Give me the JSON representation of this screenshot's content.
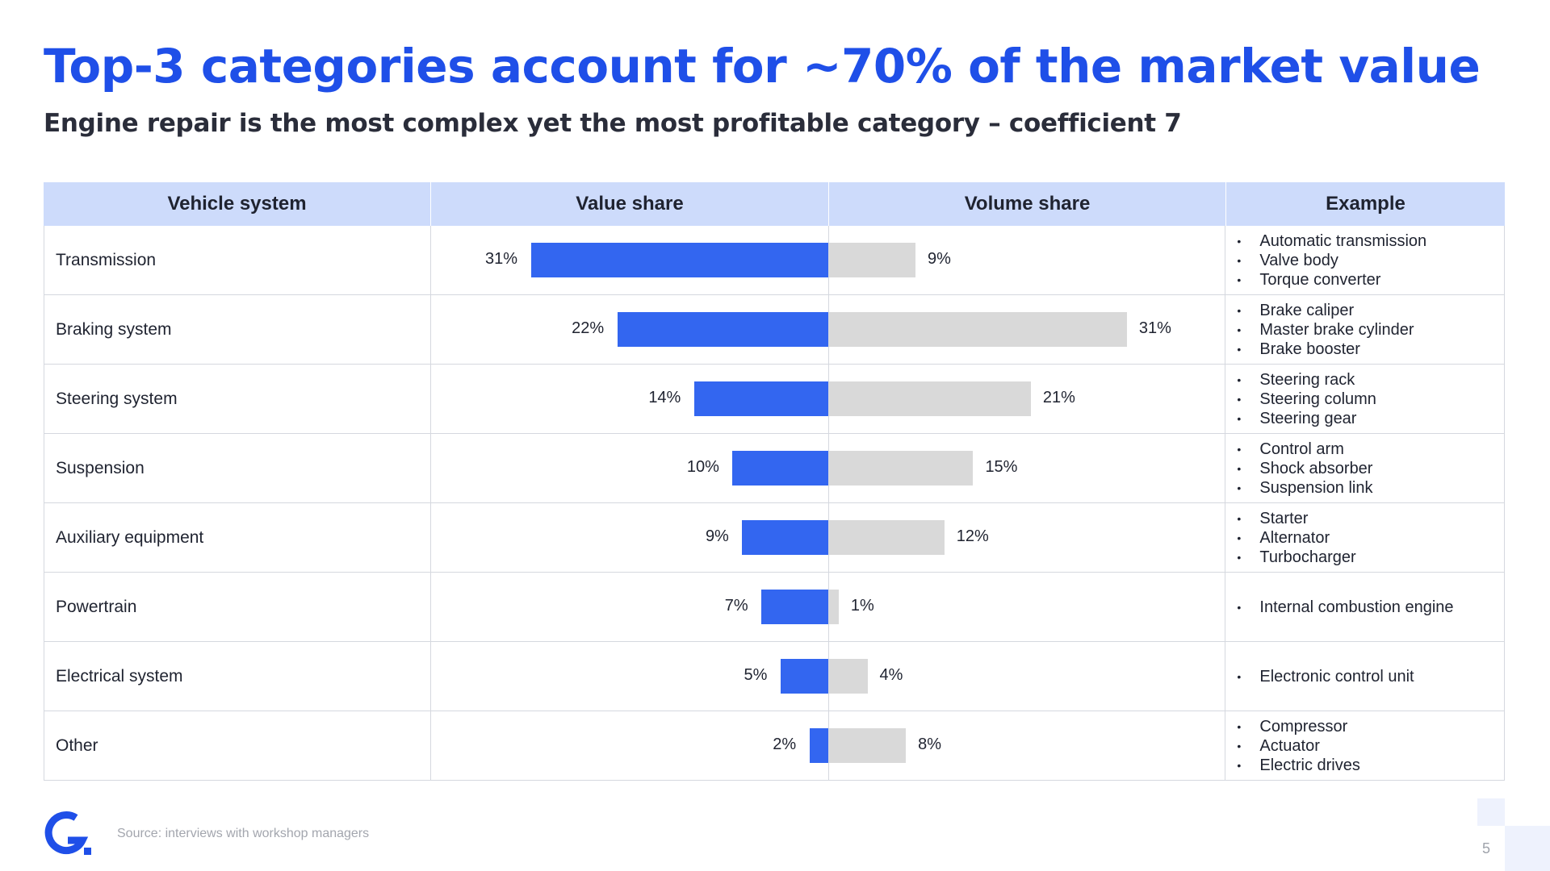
{
  "title": "Top-3 categories account for ~70% of the market value",
  "subtitle": "Engine repair is the most complex yet the most profitable category – coefficient 7",
  "headers": {
    "system": "Vehicle system",
    "value": "Value share",
    "volume": "Volume share",
    "example": "Example"
  },
  "chart_data": {
    "type": "bar",
    "categories": [
      "Transmission",
      "Braking system",
      "Steering system",
      "Suspension",
      "Auxiliary equipment",
      "Powertrain",
      "Electrical system",
      "Other"
    ],
    "series": [
      {
        "name": "Value share",
        "values": [
          31,
          22,
          14,
          10,
          9,
          7,
          5,
          2
        ]
      },
      {
        "name": "Volume share",
        "values": [
          9,
          31,
          21,
          15,
          12,
          1,
          4,
          8
        ]
      }
    ],
    "value_labels": [
      "31%",
      "22%",
      "14%",
      "10%",
      "9%",
      "7%",
      "5%",
      "2%"
    ],
    "volume_labels": [
      "9%",
      "31%",
      "21%",
      "15%",
      "12%",
      "1%",
      "4%",
      "8%"
    ],
    "colors": {
      "value": "#3366f0",
      "volume": "#d9d9d9"
    }
  },
  "examples": [
    [
      "Automatic transmission",
      "Valve body",
      "Torque converter"
    ],
    [
      "Brake caliper",
      "Master brake cylinder",
      "Brake booster"
    ],
    [
      "Steering rack",
      "Steering column",
      "Steering gear"
    ],
    [
      "Control arm",
      "Shock absorber",
      "Suspension link"
    ],
    [
      "Starter",
      "Alternator",
      "Turbocharger"
    ],
    [
      "Internal combustion engine"
    ],
    [
      "Electronic control unit"
    ],
    [
      "Compressor",
      "Actuator",
      "Electric drives"
    ]
  ],
  "footer": {
    "source": "Source: interviews with workshop managers",
    "page": "5",
    "logo_icon": "g-logo-icon"
  },
  "colors": {
    "title": "#1f4fe8",
    "header_bg": "#cddbfb"
  }
}
